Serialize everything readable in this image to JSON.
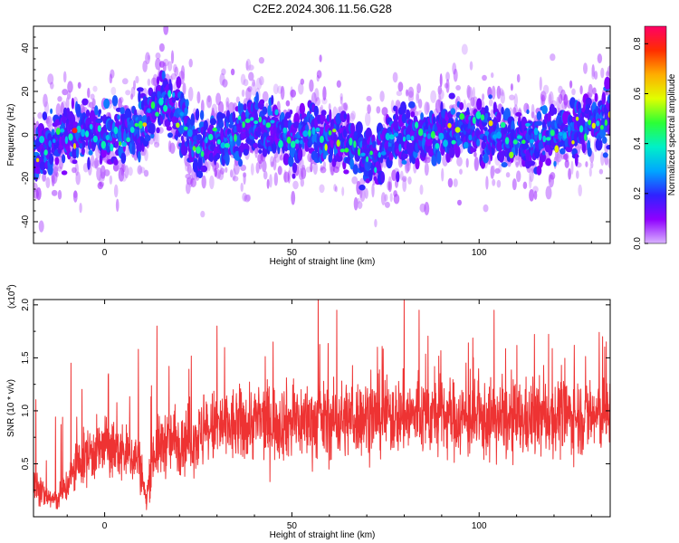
{
  "title": "C2E2.2024.306.11.56.G28",
  "colors": {
    "snr_line": "#ee3333",
    "colorbar_stops": [
      "#d9b3ff",
      "#8f00ff",
      "#2f22ff",
      "#00a6ff",
      "#00f0c8",
      "#2cff35",
      "#e0ff00",
      "#ffad00",
      "#ff2d00",
      "#ff0066"
    ]
  },
  "chart_data": [
    {
      "type": "heatmap",
      "xlabel": "Height of straight line (km)",
      "ylabel": "Frequency (Hz)",
      "xlim": [
        -19,
        135
      ],
      "ylim": [
        -50,
        50
      ],
      "xticks": [
        0,
        50,
        100
      ],
      "yticks": [
        -40,
        -20,
        0,
        20,
        40
      ],
      "colorbar": {
        "label": "Normalized spectral amplitude",
        "range": [
          0.0,
          0.87
        ],
        "ticks": [
          "0.0",
          "0.2",
          "0.4",
          "0.6",
          "0.8"
        ]
      },
      "ridge_center_hz": [
        [
          -19,
          -10
        ],
        [
          -15,
          -5
        ],
        [
          -10,
          0
        ],
        [
          -5,
          1
        ],
        [
          0,
          0
        ],
        [
          5,
          1
        ],
        [
          10,
          4
        ],
        [
          13,
          10
        ],
        [
          16,
          17
        ],
        [
          18,
          12
        ],
        [
          22,
          2
        ],
        [
          26,
          -6
        ],
        [
          30,
          -2
        ],
        [
          35,
          0
        ],
        [
          40,
          6
        ],
        [
          45,
          3
        ],
        [
          50,
          -3
        ],
        [
          55,
          2
        ],
        [
          60,
          0
        ],
        [
          65,
          -4
        ],
        [
          70,
          -10
        ],
        [
          73,
          -12
        ],
        [
          76,
          -2
        ],
        [
          80,
          1
        ],
        [
          85,
          -2
        ],
        [
          90,
          1
        ],
        [
          95,
          2
        ],
        [
          100,
          3
        ],
        [
          105,
          0
        ],
        [
          110,
          -3
        ],
        [
          115,
          -2
        ],
        [
          120,
          0
        ],
        [
          125,
          2
        ],
        [
          130,
          5
        ],
        [
          135,
          8
        ]
      ],
      "typical_halfwidth_hz": 12,
      "peak_amplitude_at_km": [
        -8,
        2
      ]
    },
    {
      "type": "line",
      "xlabel": "Height of straight line (km)",
      "ylabel": "SNR (10 * v/v)",
      "scale_label": "(x10",
      "scale_exponent": "4",
      "scale_close": ")",
      "xlim": [
        -19,
        135
      ],
      "ylim": [
        0,
        2.05
      ],
      "xticks": [
        0,
        50,
        100
      ],
      "yticks": [
        "0.5",
        "1.0",
        "1.5",
        "2.0"
      ],
      "series": [
        {
          "baseline": [
            [
              -19,
              0.35
            ],
            [
              -16,
              0.2
            ],
            [
              -13,
              0.15
            ],
            [
              -10,
              0.3
            ],
            [
              -7,
              0.5
            ],
            [
              -4,
              0.6
            ],
            [
              0,
              0.65
            ],
            [
              5,
              0.6
            ],
            [
              9,
              0.55
            ],
            [
              11,
              0.15
            ],
            [
              13,
              0.6
            ],
            [
              16,
              0.7
            ],
            [
              20,
              0.72
            ],
            [
              25,
              0.75
            ],
            [
              30,
              0.85
            ],
            [
              35,
              0.85
            ],
            [
              40,
              0.9
            ],
            [
              50,
              0.9
            ],
            [
              60,
              0.9
            ],
            [
              70,
              0.95
            ],
            [
              80,
              0.95
            ],
            [
              90,
              0.95
            ],
            [
              100,
              0.9
            ],
            [
              110,
              0.9
            ],
            [
              120,
              0.95
            ],
            [
              135,
              0.95
            ]
          ],
          "spikes": [
            [
              -9,
              1.45
            ],
            [
              1,
              1.35
            ],
            [
              9,
              1.58
            ],
            [
              14,
              1.8
            ],
            [
              30,
              1.8
            ],
            [
              45,
              1.65
            ],
            [
              57,
              2.05
            ],
            [
              62,
              1.95
            ],
            [
              80,
              2.05
            ],
            [
              84,
              1.95
            ],
            [
              104,
              1.95
            ],
            [
              133,
              1.7
            ]
          ],
          "noise_amplitude": 0.4
        }
      ]
    }
  ]
}
